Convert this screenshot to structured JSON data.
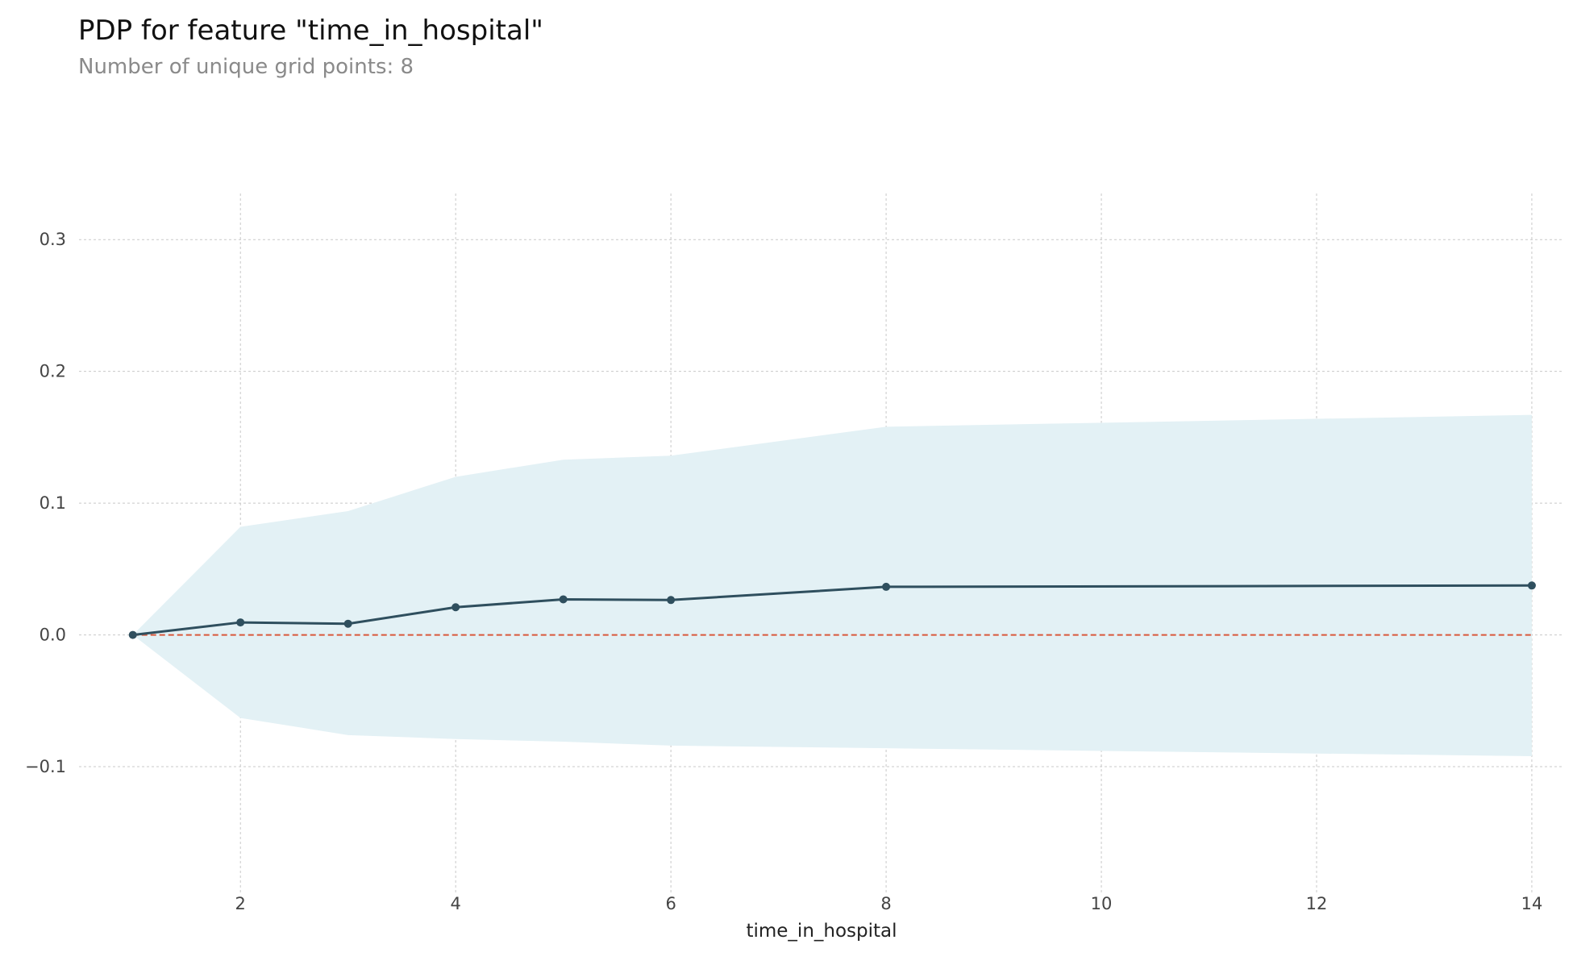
{
  "header": {
    "title": "PDP for feature \"time_in_hospital\"",
    "subtitle": "Number of unique grid points: 8"
  },
  "chart_data": {
    "type": "line",
    "title": "PDP for feature \"time_in_hospital\"",
    "subtitle": "Number of unique grid points: 8",
    "xlabel": "time_in_hospital",
    "ylabel": "",
    "xlim": [
      0.5,
      14.3
    ],
    "ylim": [
      -0.185,
      0.335
    ],
    "xticks": [
      2,
      4,
      6,
      8,
      10,
      12,
      14
    ],
    "yticks": [
      -0.1,
      0.0,
      0.1,
      0.2,
      0.3
    ],
    "ytick_labels": [
      "−0.1",
      "0.0",
      "0.1",
      "0.2",
      "0.3"
    ],
    "grid": true,
    "series": [
      {
        "x": [
          1,
          2,
          3,
          4,
          5,
          6,
          8,
          14
        ],
        "values": [
          0.0,
          0.0095,
          0.0085,
          0.021,
          0.027,
          0.0265,
          0.0365,
          0.0375
        ],
        "upper": [
          0.0,
          0.082,
          0.094,
          0.12,
          0.133,
          0.136,
          0.158,
          0.167
        ],
        "lower": [
          0.0,
          -0.063,
          -0.076,
          -0.079,
          -0.081,
          -0.084,
          -0.086,
          -0.092
        ]
      }
    ],
    "reference_line": {
      "y": 0.0,
      "style": "dashed",
      "color": "#d9583b"
    },
    "colors": {
      "line": "#2f4f5e",
      "band": "#e3f1f5",
      "grid": "#c8c8c8"
    }
  }
}
